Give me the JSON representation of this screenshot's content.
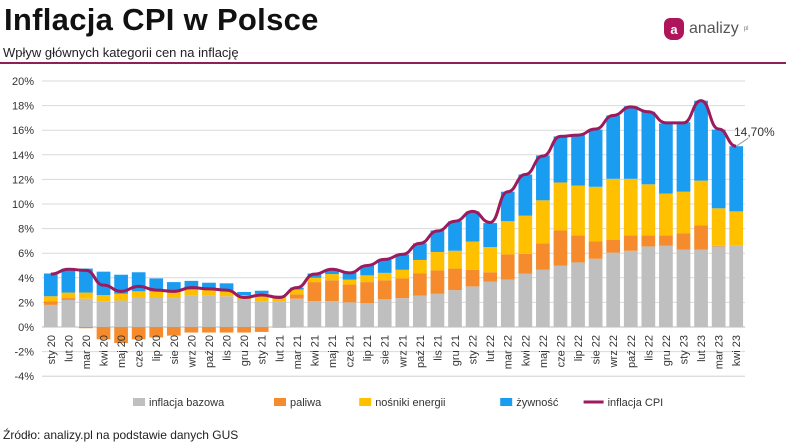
{
  "header": {
    "title": "Inflacja CPI w Polsce",
    "subtitle": "Wpływ głównych kategorii cen na inflację",
    "logo_text": "analizy",
    "logo_badge": "a",
    "logo_suffix": "pl"
  },
  "source": "Źródło: analizy.pl na podstawie danych GUS",
  "chart_data": {
    "type": "bar",
    "stacked": true,
    "categories": [
      "sty 20",
      "lut 20",
      "mar 20",
      "kwi 20",
      "maj 20",
      "cze 20",
      "lip 20",
      "sie 20",
      "wrz 20",
      "paź 20",
      "lis 20",
      "gru 20",
      "sty 21",
      "lut 21",
      "mar 21",
      "kwi 21",
      "maj 21",
      "cze 21",
      "lip 21",
      "sie 21",
      "wrz 21",
      "paź 21",
      "lis 21",
      "gru 21",
      "sty 22",
      "lut 22",
      "mar 22",
      "kwi 22",
      "maj 22",
      "cze 22",
      "lip 22",
      "sie 22",
      "wrz 22",
      "paź 22",
      "lis 22",
      "gru 22",
      "sty 23",
      "lut 23",
      "mar 23",
      "kwi 23"
    ],
    "series": [
      {
        "name": "inflacja bazowa",
        "color": "#bfbfbf",
        "values": [
          1.8,
          2.2,
          2.3,
          2.1,
          2.15,
          2.4,
          2.4,
          2.35,
          2.55,
          2.55,
          2.5,
          2.2,
          2.1,
          2.1,
          2.3,
          2.1,
          2.1,
          2.0,
          1.95,
          2.25,
          2.35,
          2.55,
          2.7,
          3.0,
          3.3,
          3.7,
          3.85,
          4.35,
          4.65,
          5.0,
          5.25,
          5.55,
          6.05,
          6.2,
          6.55,
          6.6,
          6.3,
          6.3,
          6.55,
          6.6
        ]
      },
      {
        "name": "paliwa",
        "color": "#f58b2c",
        "values": [
          0.3,
          0.15,
          -0.1,
          -1.0,
          -1.3,
          -1.0,
          -0.85,
          -0.7,
          -0.45,
          -0.45,
          -0.45,
          -0.45,
          -0.4,
          -0.05,
          0.35,
          1.55,
          1.7,
          1.45,
          1.7,
          1.55,
          1.6,
          1.8,
          1.9,
          1.75,
          1.35,
          0.75,
          2.05,
          1.6,
          2.15,
          2.85,
          2.2,
          1.4,
          1.05,
          1.25,
          0.9,
          0.85,
          1.3,
          1.95,
          0.05,
          0.0
        ]
      },
      {
        "name": "nośniki energii",
        "color": "#ffc000",
        "values": [
          0.4,
          0.45,
          0.5,
          0.5,
          0.55,
          0.5,
          0.5,
          0.55,
          0.5,
          0.5,
          0.5,
          0.4,
          0.6,
          0.4,
          0.4,
          0.35,
          0.5,
          0.4,
          0.55,
          0.6,
          0.7,
          1.1,
          1.5,
          1.45,
          2.3,
          2.05,
          2.7,
          3.1,
          3.5,
          3.9,
          4.05,
          4.45,
          4.95,
          4.6,
          4.15,
          3.4,
          3.4,
          3.65,
          3.05,
          2.8
        ]
      },
      {
        "name": "żywność",
        "color": "#1a9cf0",
        "values": [
          1.85,
          1.95,
          1.95,
          1.9,
          1.55,
          1.55,
          1.05,
          0.75,
          0.7,
          0.55,
          0.55,
          0.25,
          0.25,
          0.05,
          0.15,
          0.35,
          0.4,
          0.55,
          0.8,
          1.05,
          1.25,
          1.35,
          1.75,
          2.4,
          2.45,
          1.95,
          2.4,
          3.35,
          3.65,
          3.75,
          4.1,
          4.65,
          5.15,
          5.9,
          5.9,
          5.7,
          5.65,
          6.5,
          6.4,
          5.3
        ]
      }
    ],
    "line": {
      "name": "inflacja CPI",
      "color": "#9b1b5e",
      "values": [
        4.3,
        4.7,
        4.6,
        3.4,
        2.9,
        3.3,
        3.0,
        2.9,
        3.2,
        3.1,
        3.0,
        2.4,
        2.6,
        2.4,
        3.2,
        4.3,
        4.7,
        4.4,
        5.0,
        5.5,
        5.9,
        6.8,
        7.8,
        8.6,
        9.4,
        8.5,
        11.0,
        12.4,
        13.9,
        15.5,
        15.6,
        16.1,
        17.2,
        17.9,
        17.5,
        16.6,
        16.6,
        18.4,
        16.1,
        14.7
      ]
    },
    "annotation": "14,70%",
    "yticks": [
      "20%",
      "18%",
      "16%",
      "14%",
      "12%",
      "10%",
      "8%",
      "6%",
      "4%",
      "2%",
      "0%",
      "-2%",
      "-4%"
    ],
    "ylim": [
      -4,
      20
    ],
    "grid": true,
    "legend_position": "bottom"
  }
}
